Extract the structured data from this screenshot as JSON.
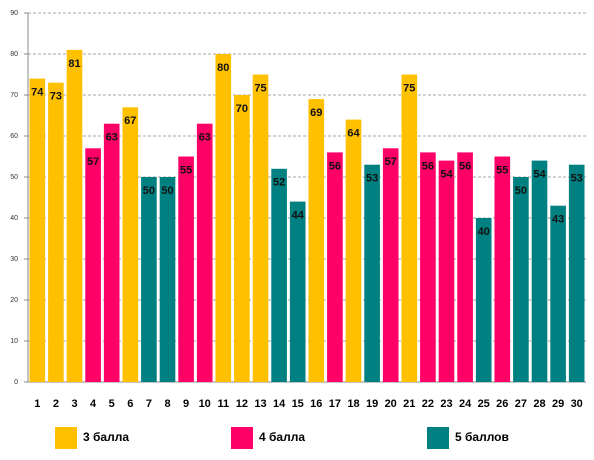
{
  "chart_data": {
    "type": "bar",
    "categories": [
      "1",
      "2",
      "3",
      "4",
      "5",
      "6",
      "7",
      "8",
      "9",
      "10",
      "11",
      "12",
      "13",
      "14",
      "15",
      "16",
      "17",
      "18",
      "19",
      "20",
      "21",
      "22",
      "23",
      "24",
      "25",
      "26",
      "27",
      "28",
      "29",
      "30"
    ],
    "series": [
      {
        "name": "3 балла",
        "color": "#ffc000",
        "values": [
          74,
          73,
          81,
          null,
          null,
          67,
          null,
          null,
          null,
          null,
          80,
          70,
          75,
          null,
          null,
          69,
          null,
          64,
          null,
          null,
          75,
          null,
          null,
          null,
          null,
          null,
          null,
          null,
          null,
          null
        ]
      },
      {
        "name": "4 балла",
        "color": "#ff0066",
        "values": [
          null,
          null,
          null,
          57,
          63,
          null,
          null,
          null,
          55,
          63,
          null,
          null,
          null,
          null,
          null,
          null,
          56,
          null,
          null,
          57,
          null,
          56,
          54,
          56,
          null,
          55,
          null,
          null,
          null,
          null
        ]
      },
      {
        "name": "5 баллов",
        "color": "#008080",
        "values": [
          null,
          null,
          null,
          null,
          null,
          null,
          50,
          50,
          null,
          null,
          null,
          null,
          null,
          52,
          44,
          null,
          null,
          null,
          53,
          null,
          null,
          null,
          null,
          null,
          40,
          null,
          50,
          54,
          43,
          53
        ]
      }
    ],
    "ylim": [
      0,
      90
    ],
    "yticks": [
      0,
      10,
      20,
      30,
      40,
      50,
      60,
      70,
      80,
      90
    ],
    "grid": true,
    "legend": "bottom"
  }
}
